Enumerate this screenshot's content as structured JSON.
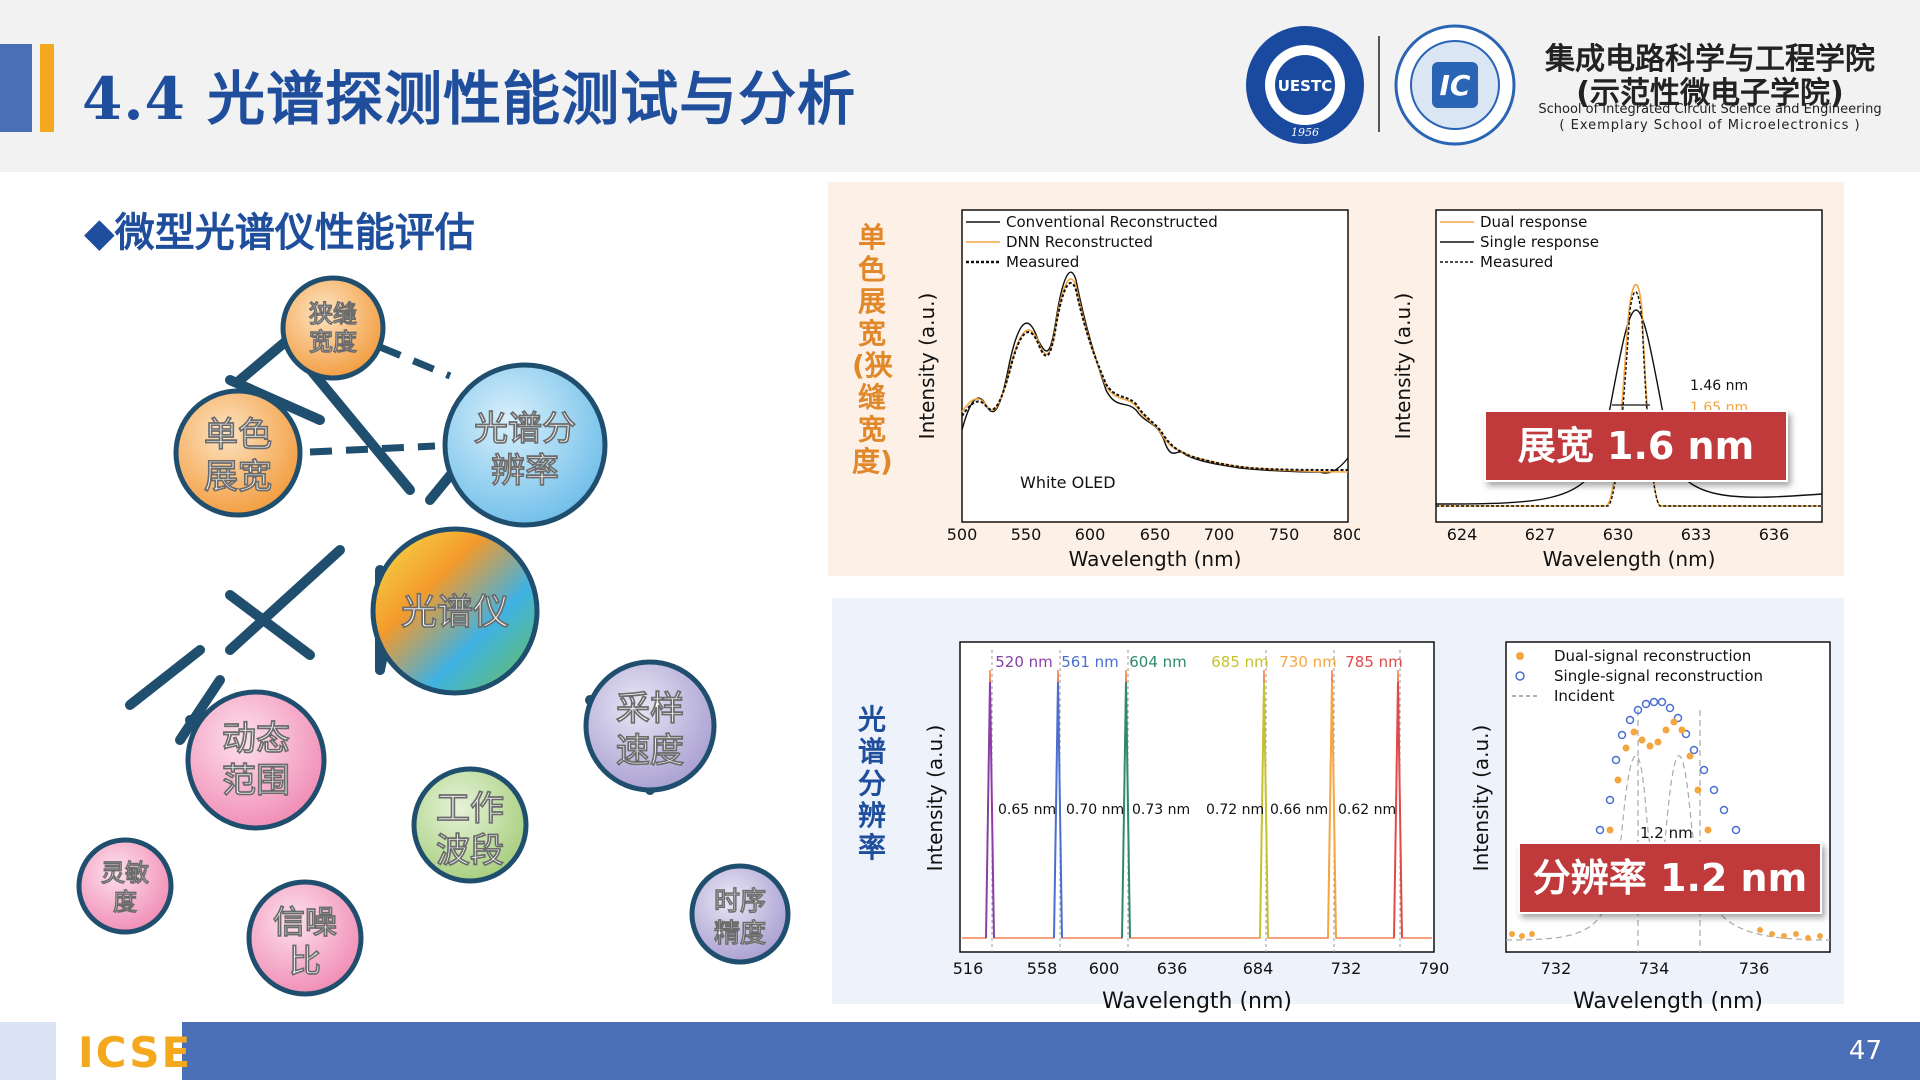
{
  "header": {
    "title": "4.4 光谱探测性能测试与分析",
    "logo1_text": "UESTC",
    "logo1_year": "1956",
    "logo2_text": "IC",
    "school_cn_line1": "集成电路科学与工程学院",
    "school_cn_line2": "(示范性微电子学院)",
    "school_en_line1": "School of Integrated Circuit Science and Engineering",
    "school_en_line2": "( Exemplary School of Microelectronics )"
  },
  "subtitle": "◆微型光谱仪性能评估",
  "diagram": {
    "center": "光谱仪",
    "nodes": {
      "narrow_slit": [
        "狭缝",
        "宽度"
      ],
      "mono_broadening": [
        "单色",
        "展宽"
      ],
      "spectral_resolution": [
        "光谱分",
        "辨率"
      ],
      "dynamic_range": [
        "动态",
        "范围"
      ],
      "working_band": [
        "工作",
        "波段"
      ],
      "sampling_speed": [
        "采样",
        "速度"
      ],
      "sensitivity": [
        "灵敏",
        "度"
      ],
      "snr": [
        "信噪",
        "比"
      ],
      "timing_precision": [
        "时序",
        "精度"
      ]
    },
    "colors": {
      "orange": "#f5a24b",
      "blue": "#7fc4ea",
      "pink": "#f3a0c0",
      "green": "#b3d58f",
      "purple": "#b9b1d9",
      "line": "#1f4e6e"
    }
  },
  "top_section": {
    "label": "单色展宽(狭缝宽度)",
    "chart1": {
      "legend": [
        "Conventional Reconstructed",
        "DNN Reconstructed",
        "Measured"
      ],
      "annotation": "White OLED",
      "xlabel": "Wavelength (nm)",
      "ylabel": "Intensity (a.u.)",
      "xticks": [
        "500",
        "550",
        "600",
        "650",
        "700",
        "750",
        "800"
      ]
    },
    "chart2": {
      "legend": [
        "Dual response",
        "Single response",
        "Measured"
      ],
      "annotation1": "1.46 nm",
      "annotation2": "1.65 nm",
      "xlabel": "Wavelength (nm)",
      "ylabel": "Intensity (a.u.)",
      "xticks": [
        "624",
        "627",
        "630",
        "633",
        "636"
      ]
    },
    "callout": "展宽 1.6 nm"
  },
  "bottom_section": {
    "label": "光谱分辨率",
    "chart3": {
      "peaks": [
        "520 nm",
        "561 nm",
        "604 nm",
        "685 nm",
        "730 nm",
        "785 nm"
      ],
      "widths": [
        "0.65 nm",
        "0.70 nm",
        "0.73 nm",
        "0.72 nm",
        "0.66 nm",
        "0.62 nm"
      ],
      "xlabel": "Wavelength (nm)",
      "ylabel": "Intensity (a.u.)",
      "xticks": [
        "516",
        "558",
        "600",
        "636",
        "684",
        "732",
        "790"
      ]
    },
    "chart4": {
      "legend": [
        "Dual-signal reconstruction",
        "Single-signal reconstruction",
        "Incident"
      ],
      "annotation": "1.2 nm",
      "xlabel": "Wavelength (nm)",
      "ylabel": "Intensity (a.u.)",
      "xticks": [
        "732",
        "734",
        "736"
      ]
    },
    "callout": "分辨率 1.2 nm"
  },
  "footer": {
    "logo": "ICSE",
    "page": "47"
  }
}
